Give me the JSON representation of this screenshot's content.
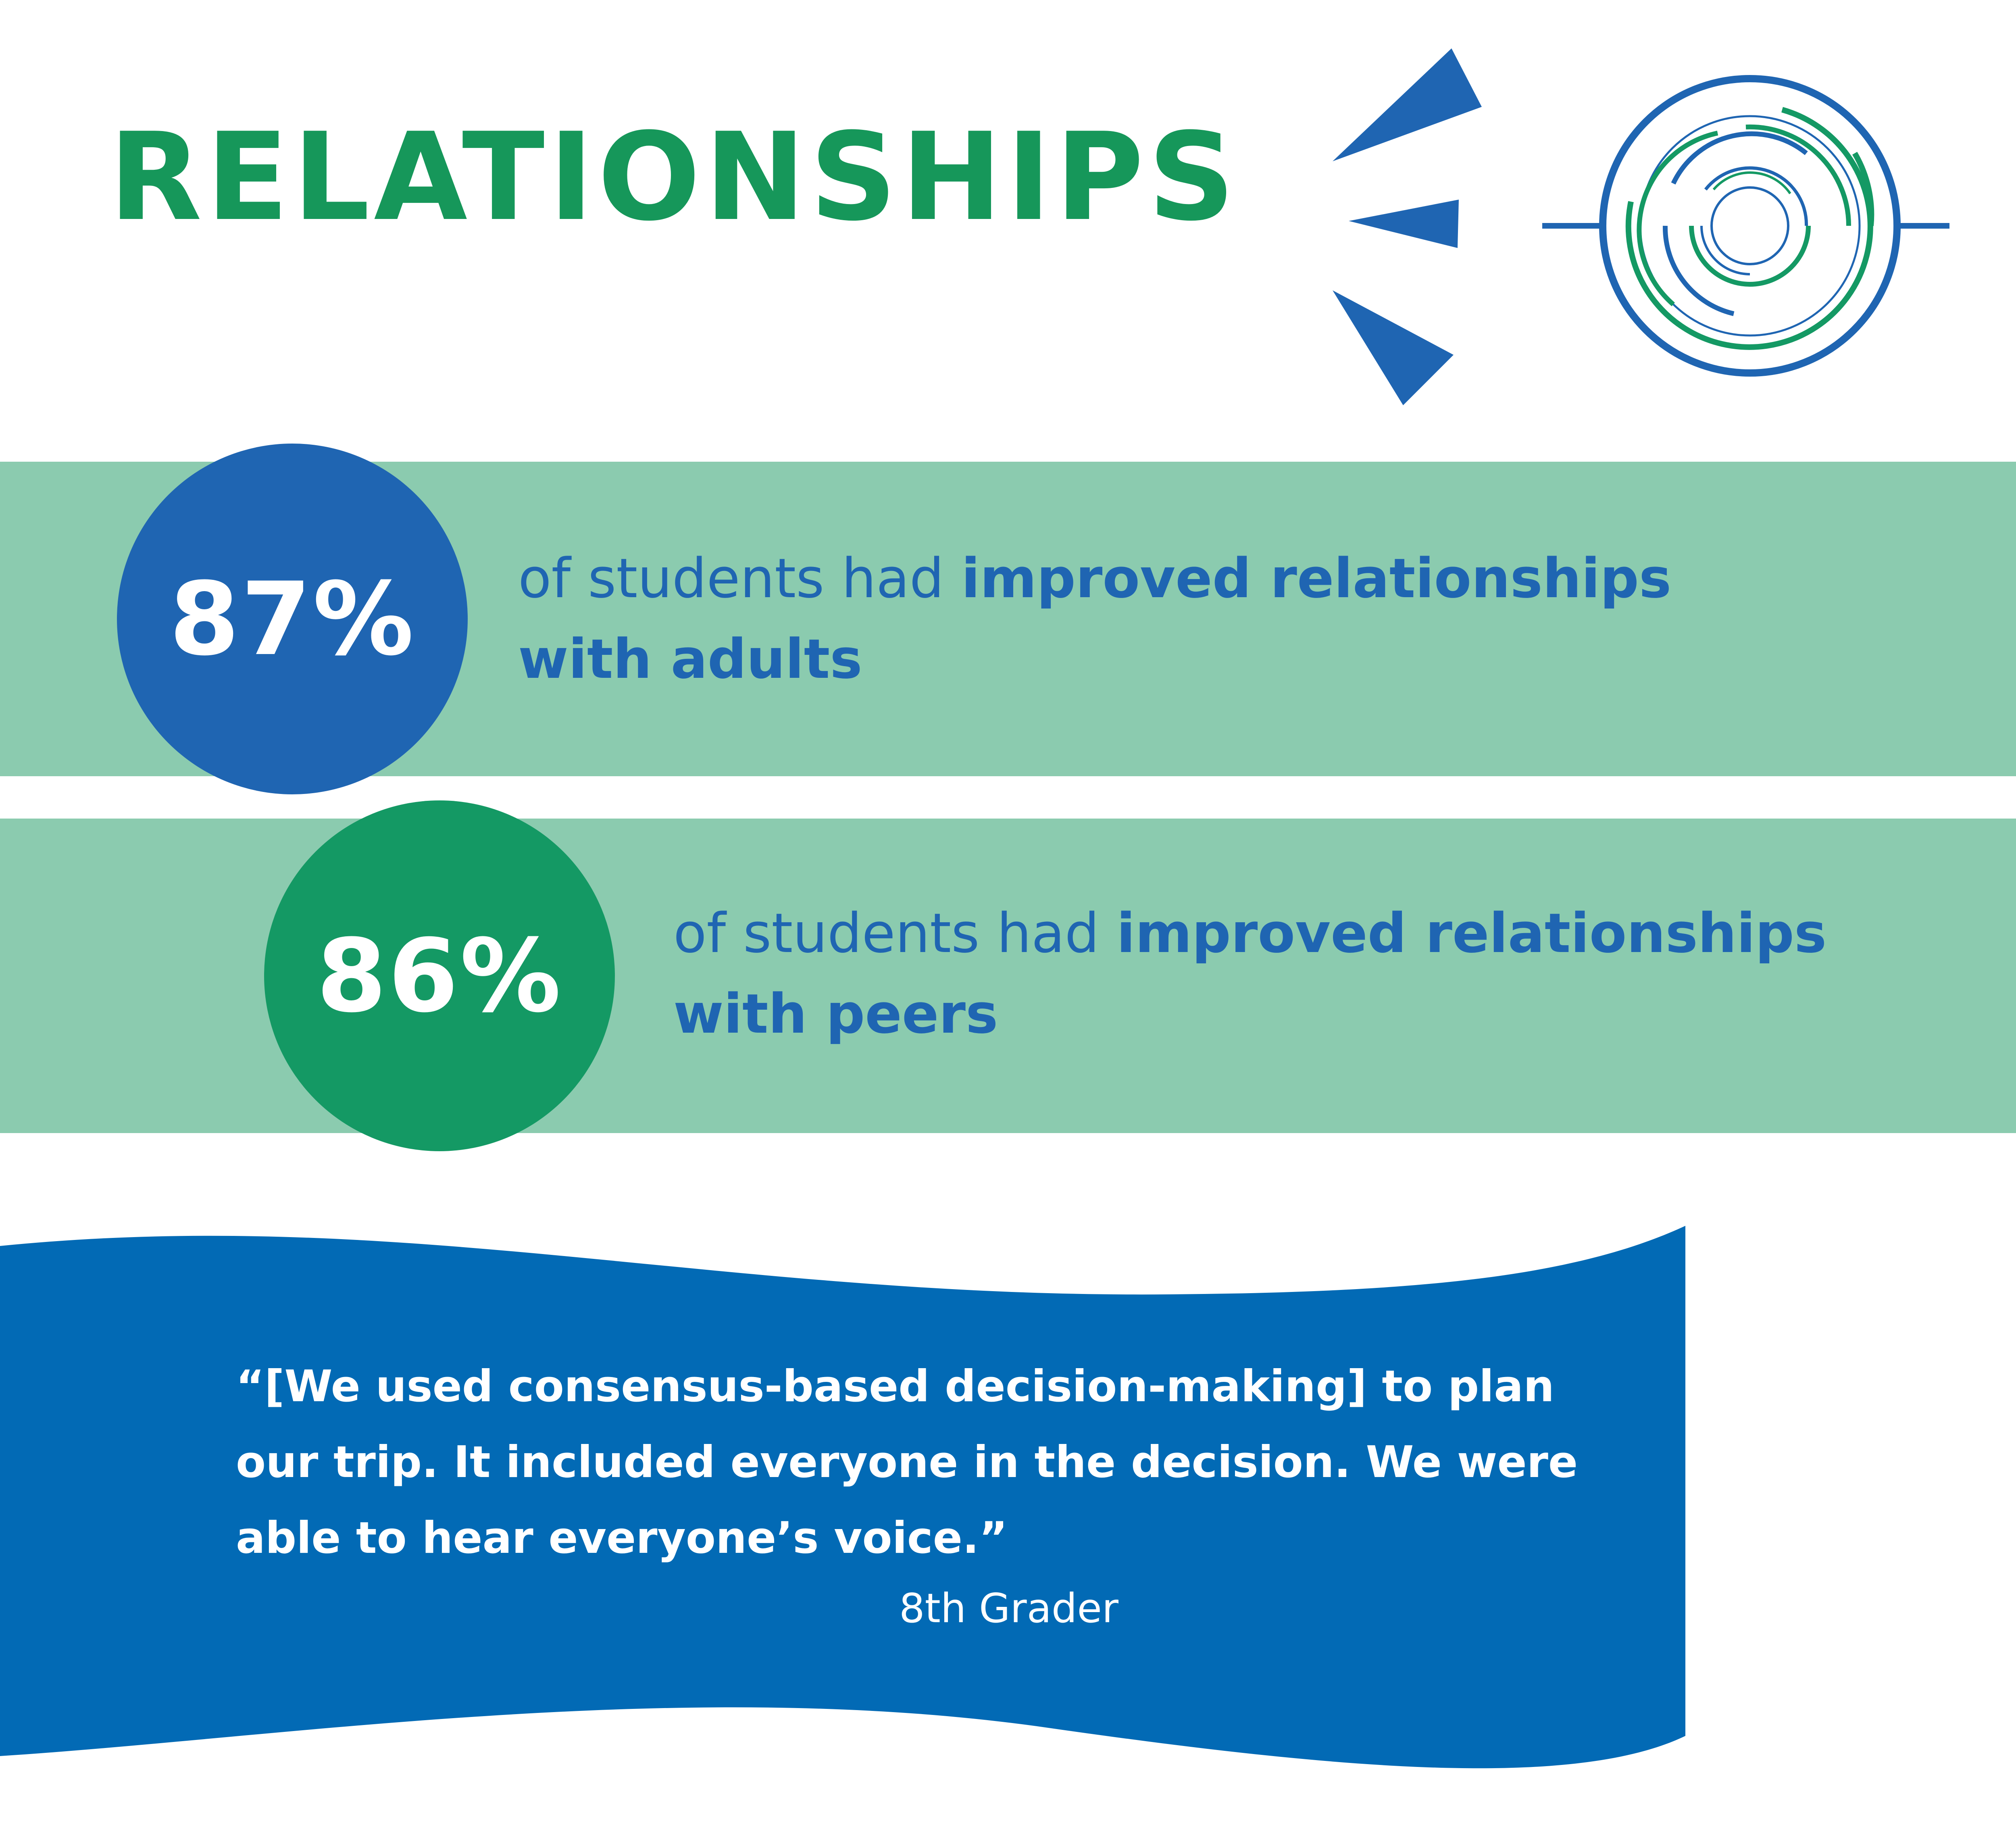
{
  "title": "RELATIONSHIPS",
  "colors": {
    "title_green": "#16975a",
    "blue": "#1f65b2",
    "green": "#149964",
    "band": "#8bcbaf",
    "quote_bg": "#026ab5"
  },
  "stats": [
    {
      "value": "87%",
      "text_regular": "of students had ",
      "text_bold_line1": "improved relationships",
      "text_bold_line2": "with adults",
      "color": "#1f65b2"
    },
    {
      "value": "86%",
      "text_regular": "of students had ",
      "text_bold_line1": "improved relationships",
      "text_bold_line2": "with peers",
      "color": "#149964"
    }
  ],
  "quote": {
    "text": "“[We used consensus-based decision-making] to plan our trip. It included everyone in the decision. We were able to hear everyone’s voice.”",
    "attribution": "8th Grader"
  },
  "icons": [
    "burst-rays-icon",
    "target-rings-icon"
  ]
}
